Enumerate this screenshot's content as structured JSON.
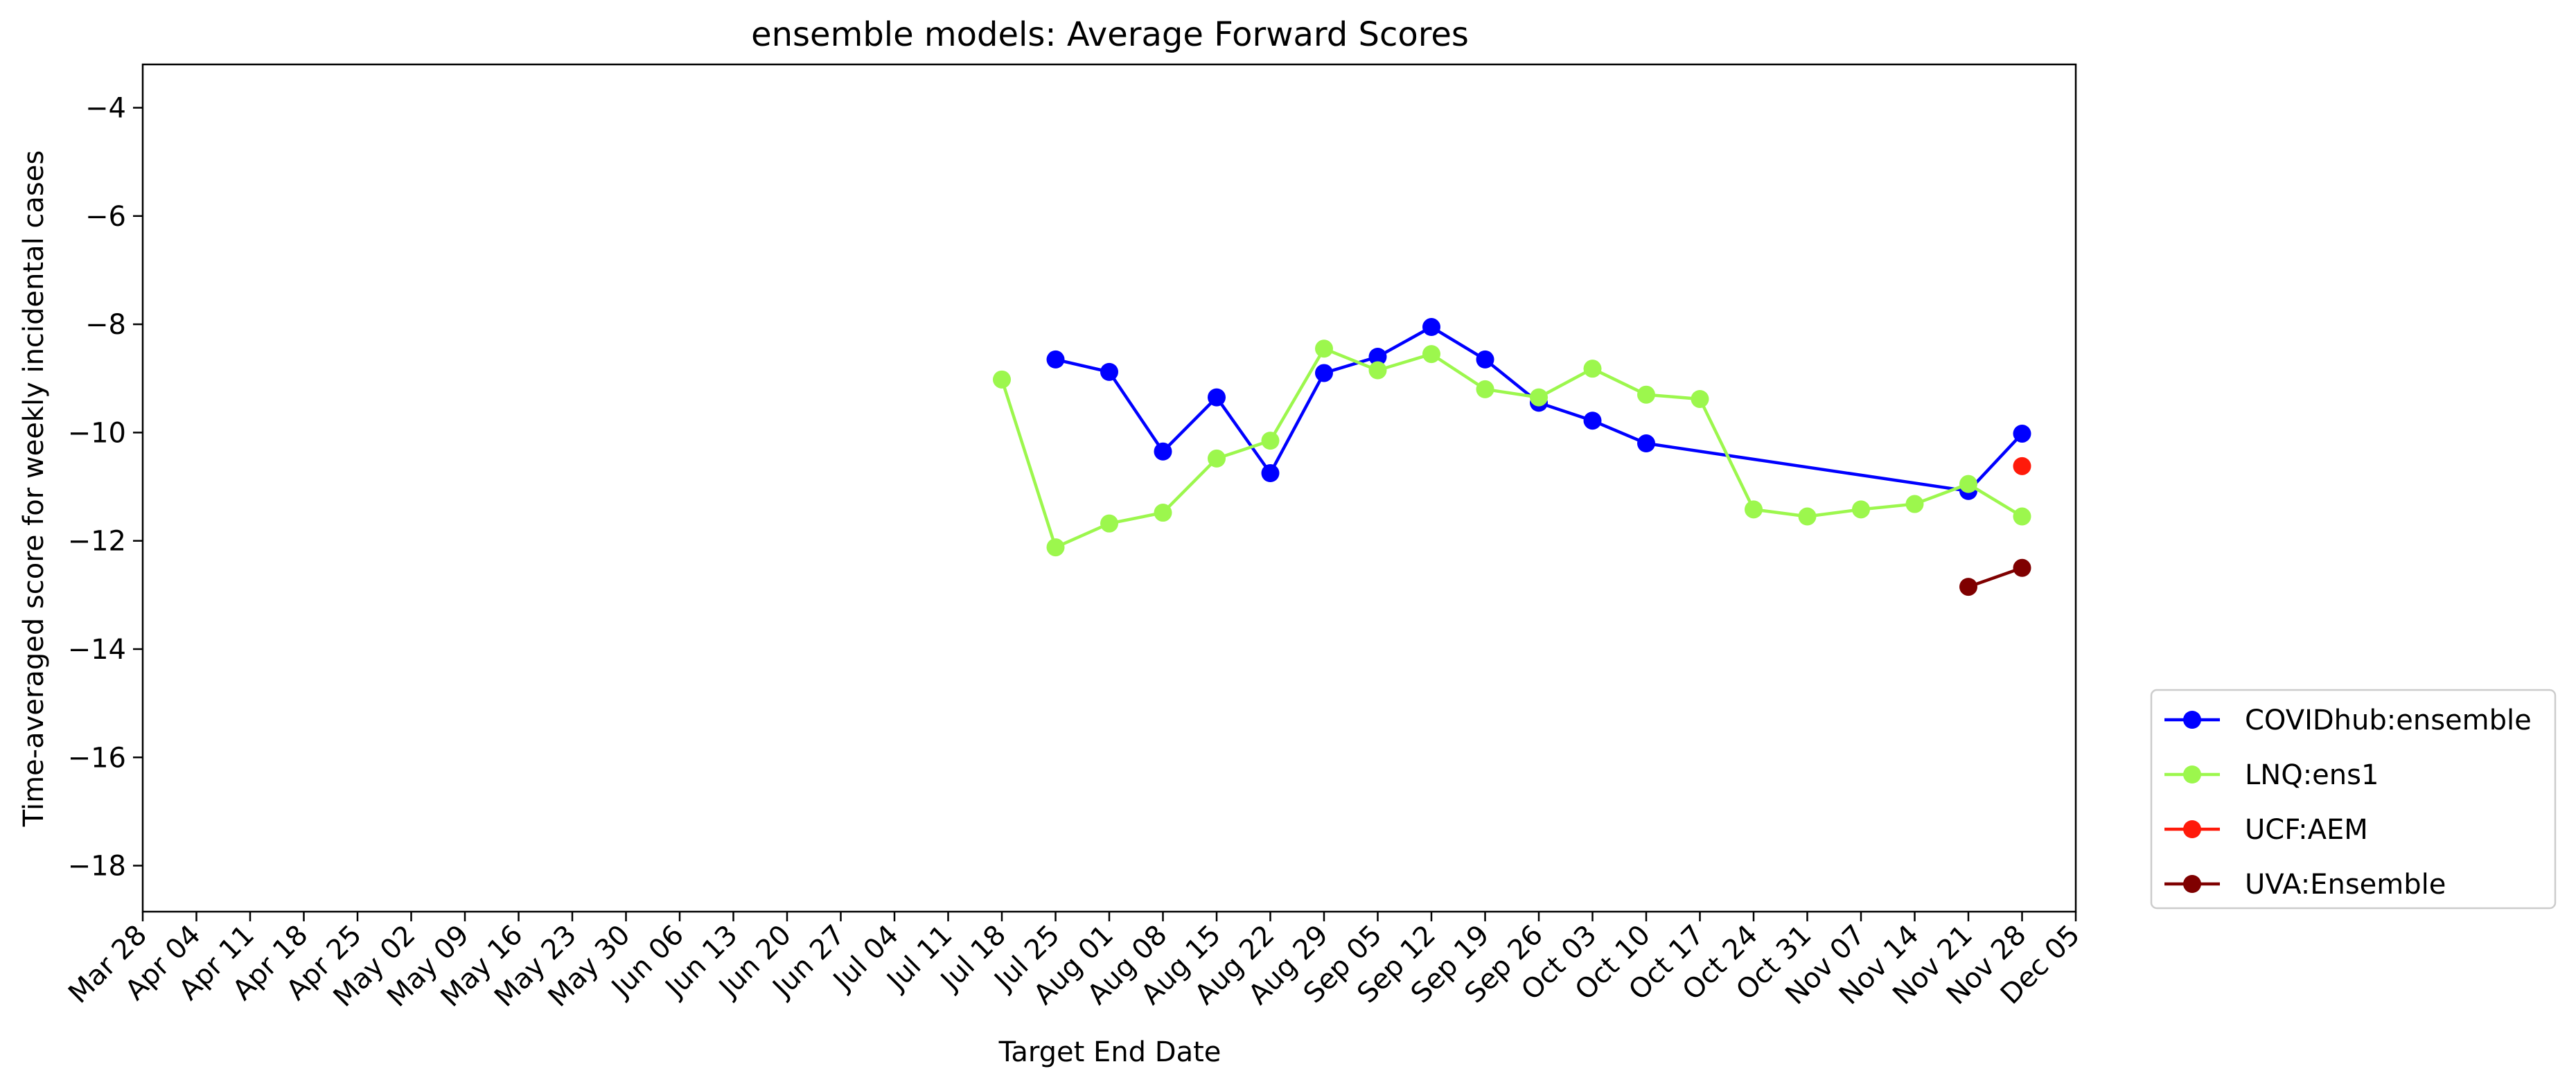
{
  "chart_data": {
    "type": "line",
    "title": "ensemble models: Average Forward Scores",
    "xlabel": "Target End Date",
    "ylabel": "Time-averaged score for weekly incidental cases",
    "x": [
      "Mar 28",
      "Apr 04",
      "Apr 11",
      "Apr 18",
      "Apr 25",
      "May 02",
      "May 09",
      "May 16",
      "May 23",
      "May 30",
      "Jun 06",
      "Jun 13",
      "Jun 20",
      "Jun 27",
      "Jul 04",
      "Jul 11",
      "Jul 18",
      "Jul 25",
      "Aug 01",
      "Aug 08",
      "Aug 15",
      "Aug 22",
      "Aug 29",
      "Sep 05",
      "Sep 12",
      "Sep 19",
      "Sep 26",
      "Oct 03",
      "Oct 10",
      "Oct 17",
      "Oct 24",
      "Oct 31",
      "Nov 07",
      "Nov 14",
      "Nov 21",
      "Nov 28",
      "Dec 05"
    ],
    "ylim": [
      -18.85,
      -3.2
    ],
    "yticks": [
      -4,
      -6,
      -8,
      -10,
      -12,
      -14,
      -16,
      -18
    ],
    "grid": false,
    "legend_position": "outside-lower-right",
    "series": [
      {
        "name": "COVIDhub:ensemble",
        "color": "#0000ff",
        "points": [
          [
            "Jul 25",
            -8.65
          ],
          [
            "Aug 01",
            -8.88
          ],
          [
            "Aug 08",
            -10.35
          ],
          [
            "Aug 15",
            -9.35
          ],
          [
            "Aug 22",
            -10.75
          ],
          [
            "Aug 29",
            -8.9
          ],
          [
            "Sep 05",
            -8.6
          ],
          [
            "Sep 12",
            -8.05
          ],
          [
            "Sep 19",
            -8.65
          ],
          [
            "Sep 26",
            -9.45
          ],
          [
            "Oct 03",
            -9.78
          ],
          [
            "Oct 10",
            -10.2
          ],
          [
            "Nov 21",
            -11.08
          ],
          [
            "Nov 28",
            -10.02
          ]
        ]
      },
      {
        "name": "LNQ:ens1",
        "color": "#9cf74d",
        "points": [
          [
            "Jul 18",
            -9.02
          ],
          [
            "Jul 25",
            -12.12
          ],
          [
            "Aug 01",
            -11.68
          ],
          [
            "Aug 08",
            -11.48
          ],
          [
            "Aug 15",
            -10.48
          ],
          [
            "Aug 22",
            -10.15
          ],
          [
            "Aug 29",
            -8.45
          ],
          [
            "Sep 05",
            -8.85
          ],
          [
            "Sep 12",
            -8.55
          ],
          [
            "Sep 19",
            -9.2
          ],
          [
            "Sep 26",
            -9.35
          ],
          [
            "Oct 03",
            -8.82
          ],
          [
            "Oct 10",
            -9.3
          ],
          [
            "Oct 17",
            -9.38
          ],
          [
            "Oct 24",
            -11.42
          ],
          [
            "Oct 31",
            -11.55
          ],
          [
            "Nov 07",
            -11.42
          ],
          [
            "Nov 14",
            -11.32
          ],
          [
            "Nov 21",
            -10.95
          ],
          [
            "Nov 28",
            -11.55
          ]
        ]
      },
      {
        "name": "UCF:AEM",
        "color": "#ff1a0a",
        "points": [
          [
            "Nov 28",
            -10.62
          ]
        ]
      },
      {
        "name": "UVA:Ensemble",
        "color": "#7f0000",
        "points": [
          [
            "Nov 21",
            -12.85
          ],
          [
            "Nov 28",
            -12.5
          ]
        ]
      }
    ]
  }
}
